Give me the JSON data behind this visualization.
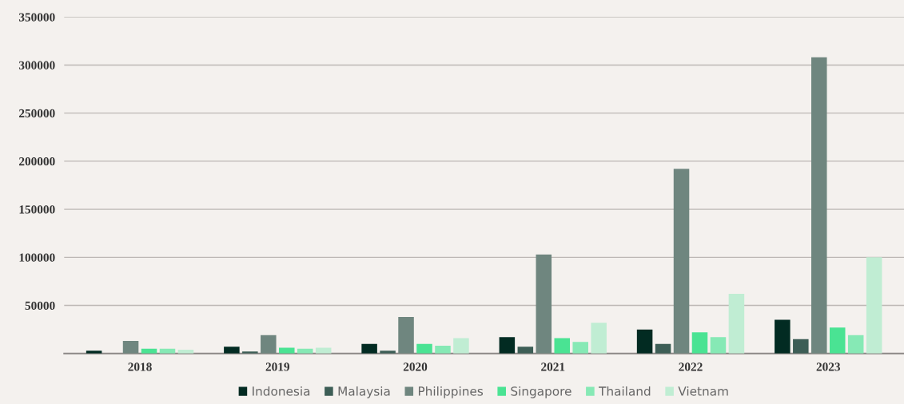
{
  "chart_data": {
    "type": "bar",
    "categories": [
      "2018",
      "2019",
      "2020",
      "2021",
      "2022",
      "2023"
    ],
    "series": [
      {
        "name": "Indonesia",
        "color": "#022b22",
        "values": [
          3000,
          7000,
          10000,
          17000,
          25000,
          35000
        ]
      },
      {
        "name": "Malaysia",
        "color": "#3d5e56",
        "values": [
          null,
          2000,
          3000,
          7000,
          10000,
          15000
        ]
      },
      {
        "name": "Philippines",
        "color": "#6f867f",
        "values": [
          13000,
          19000,
          38000,
          103000,
          192000,
          308000
        ]
      },
      {
        "name": "Singapore",
        "color": "#4ae393",
        "values": [
          5000,
          6000,
          10000,
          16000,
          22000,
          27000
        ]
      },
      {
        "name": "Thailand",
        "color": "#86e9b5",
        "values": [
          5000,
          5000,
          8000,
          12000,
          17000,
          19000
        ]
      },
      {
        "name": "Vietnam",
        "color": "#c0edd3",
        "values": [
          4000,
          6000,
          16000,
          32000,
          62000,
          100000
        ]
      }
    ],
    "ylim": [
      0,
      350000
    ],
    "yticks": [
      50000,
      100000,
      150000,
      200000,
      250000,
      300000,
      350000
    ],
    "grid": "y",
    "legend": "bottom"
  }
}
